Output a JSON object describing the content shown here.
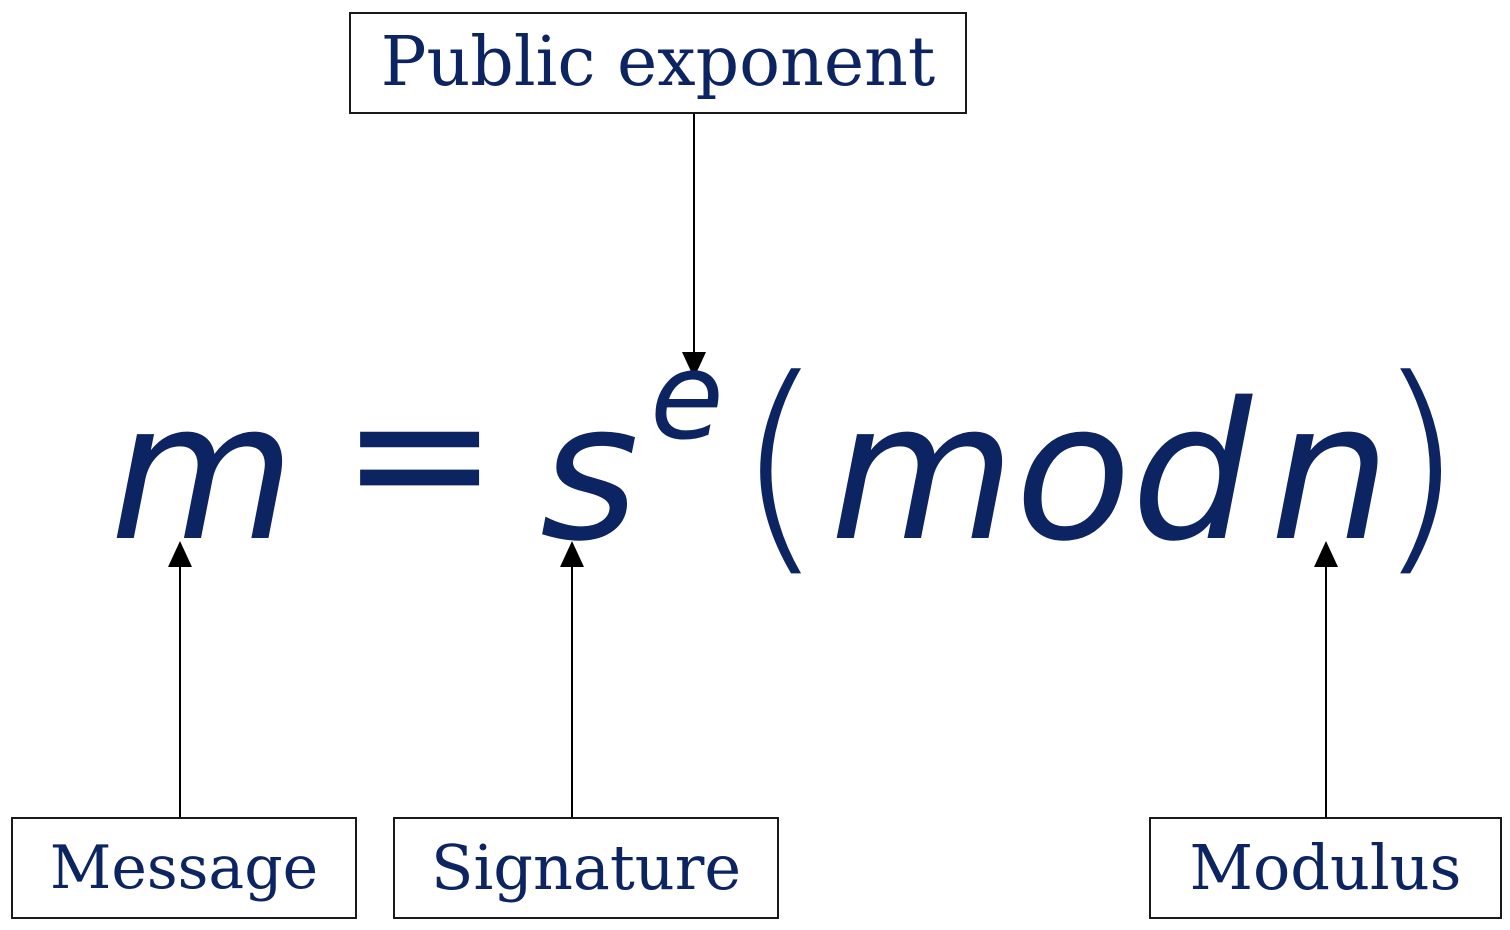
{
  "labels": {
    "public_exponent": "Public exponent",
    "message": "Message",
    "signature": "Signature",
    "modulus": "Modulus"
  },
  "equation": {
    "m": "m",
    "equals": "=",
    "s": "s",
    "e": "e",
    "open_paren": "(",
    "mod": "mod",
    "n": "n",
    "close_paren": ")"
  },
  "colors": {
    "text": "#0c2461",
    "border": "#1a1a1a",
    "arrow": "#000000",
    "background": "#ffffff"
  }
}
